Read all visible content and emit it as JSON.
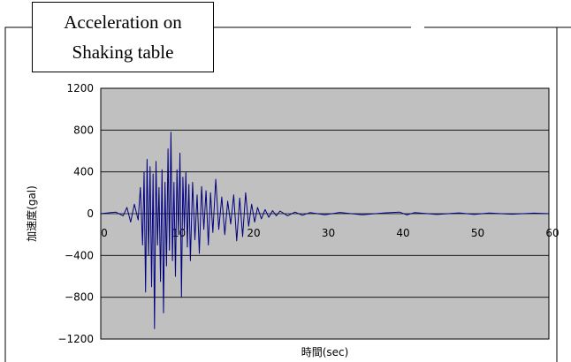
{
  "title": {
    "line1": "Acceleration on",
    "line2": "Shaking table"
  },
  "chart_data": {
    "type": "line",
    "title": "Acceleration on Shaking table",
    "xlabel": "時間(sec)",
    "ylabel": "加速度(gal)",
    "xlim": [
      0,
      60
    ],
    "ylim": [
      -1200,
      1200
    ],
    "xticks": [
      0,
      10,
      20,
      30,
      40,
      50,
      60
    ],
    "yticks": [
      1200,
      800,
      400,
      0,
      -400,
      -800,
      -1200
    ],
    "ytick_labels": [
      "1200",
      "800",
      "400",
      "0",
      "−400",
      "−800",
      "−1200"
    ],
    "grid": true,
    "legend": "none",
    "plot_background": "#c0c0c0",
    "series": [
      {
        "color": "#000080",
        "x": [
          0,
          2,
          3,
          3.5,
          4,
          4.5,
          5,
          5.3,
          5.6,
          5.8,
          6.0,
          6.2,
          6.4,
          6.6,
          6.8,
          7.0,
          7.2,
          7.4,
          7.6,
          7.8,
          8.0,
          8.2,
          8.4,
          8.6,
          8.8,
          9.0,
          9.2,
          9.4,
          9.6,
          9.8,
          10.0,
          10.2,
          10.4,
          10.6,
          10.8,
          11.0,
          11.2,
          11.4,
          11.6,
          11.8,
          12.0,
          12.3,
          12.6,
          12.9,
          13.2,
          13.5,
          13.8,
          14.1,
          14.4,
          14.7,
          15.0,
          15.4,
          15.8,
          16.2,
          16.6,
          17.0,
          17.4,
          17.8,
          18.2,
          18.6,
          19.0,
          19.4,
          19.8,
          20.2,
          20.6,
          21.0,
          21.5,
          22,
          22.5,
          23,
          23.5,
          24,
          25,
          26,
          27,
          28,
          30,
          32,
          35,
          38,
          40,
          41,
          42,
          45,
          48,
          50,
          52,
          55,
          58,
          60
        ],
        "y": [
          0,
          15,
          -20,
          60,
          -80,
          90,
          -60,
          250,
          -300,
          400,
          -750,
          520,
          -400,
          450,
          -700,
          380,
          -1100,
          500,
          -300,
          250,
          -650,
          420,
          -950,
          300,
          -500,
          620,
          -350,
          780,
          -450,
          300,
          -600,
          420,
          -200,
          580,
          -800,
          350,
          -150,
          400,
          -320,
          280,
          -450,
          300,
          -250,
          180,
          -380,
          260,
          -150,
          220,
          -300,
          200,
          -180,
          330,
          -150,
          160,
          -200,
          120,
          -100,
          180,
          -260,
          150,
          -220,
          200,
          -120,
          90,
          -80,
          60,
          -50,
          40,
          -35,
          30,
          -20,
          25,
          -20,
          15,
          -15,
          10,
          -10,
          12,
          -10,
          8,
          15,
          -12,
          10,
          -8,
          8,
          -8,
          6,
          -5,
          5,
          0
        ]
      }
    ]
  }
}
